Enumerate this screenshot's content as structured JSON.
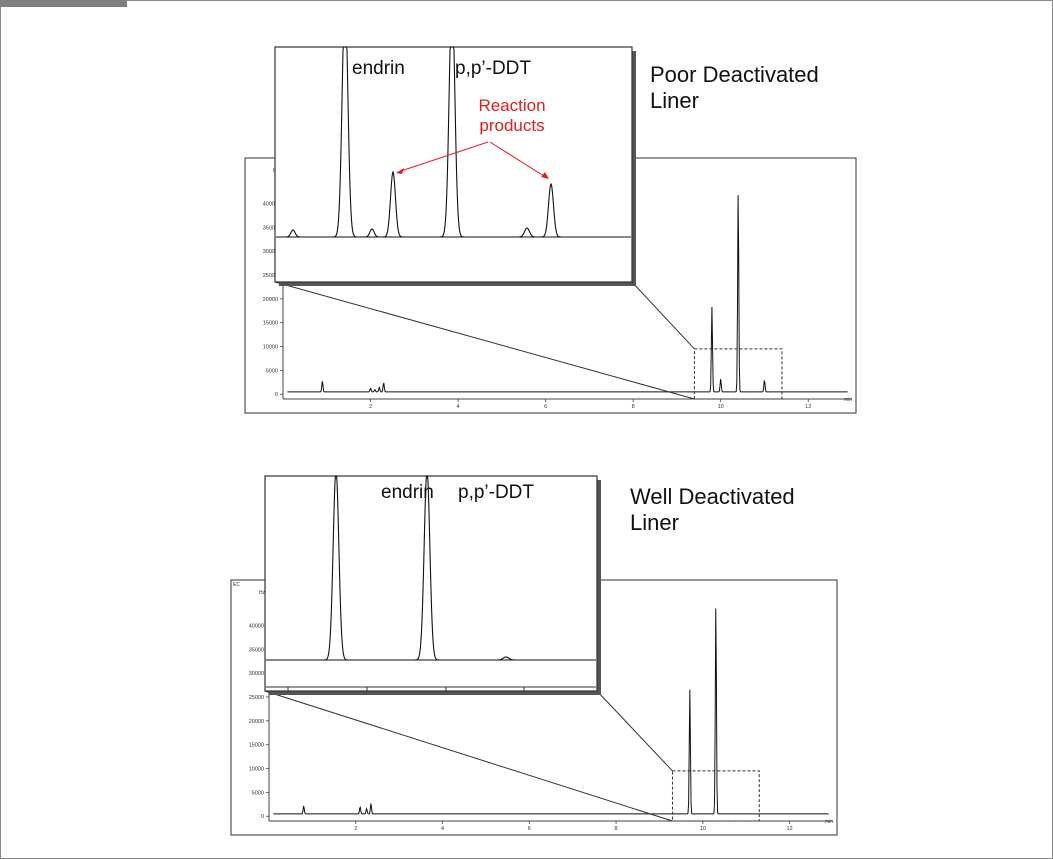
{
  "header_tab": "",
  "chart_data": [
    {
      "type": "line",
      "title": "Poor Deactivated Liner",
      "units_label": "Hz",
      "x_unit": "min",
      "xlim": [
        0,
        13
      ],
      "ylim": [
        -1000,
        47000
      ],
      "xticks": [
        2,
        4,
        6,
        8,
        10,
        12
      ],
      "yticks": [
        0,
        5000,
        10000,
        15000,
        20000,
        25000,
        30000,
        35000,
        40000
      ],
      "baseline": 500,
      "peaks": [
        {
          "x": 0.9,
          "y": 2800
        },
        {
          "x": 2.0,
          "y": 1300
        },
        {
          "x": 2.1,
          "y": 1000
        },
        {
          "x": 2.2,
          "y": 1500
        },
        {
          "x": 2.3,
          "y": 2500
        },
        {
          "x": 9.8,
          "y": 18300
        },
        {
          "x": 10.0,
          "y": 3200
        },
        {
          "x": 10.4,
          "y": 43000
        },
        {
          "x": 11.0,
          "y": 3000
        }
      ],
      "zoom_window": {
        "x": [
          9.4,
          11.4
        ],
        "y": [
          -1000,
          9500
        ]
      },
      "inset": {
        "labels": [
          "endrin",
          "p,p’-DDT"
        ],
        "annotation": "Reaction products"
      }
    },
    {
      "type": "line",
      "title": "Well Deactivated Liner",
      "units_label": "Hz",
      "units_label_2": "EC",
      "x_unit": "min",
      "xlim": [
        0,
        13
      ],
      "ylim": [
        -1000,
        47000
      ],
      "xticks": [
        2,
        4,
        6,
        8,
        10,
        12
      ],
      "yticks": [
        0,
        5000,
        10000,
        15000,
        20000,
        25000,
        30000,
        35000,
        40000
      ],
      "baseline": 500,
      "peaks": [
        {
          "x": 0.8,
          "y": 2200
        },
        {
          "x": 2.1,
          "y": 2000
        },
        {
          "x": 2.25,
          "y": 1600
        },
        {
          "x": 2.35,
          "y": 2700
        },
        {
          "x": 9.7,
          "y": 26500
        },
        {
          "x": 10.3,
          "y": 44500
        }
      ],
      "zoom_window": {
        "x": [
          9.3,
          11.3
        ],
        "y": [
          -1000,
          9500
        ]
      },
      "inset": {
        "labels": [
          "endrin",
          "p,p’-DDT"
        ]
      }
    }
  ]
}
